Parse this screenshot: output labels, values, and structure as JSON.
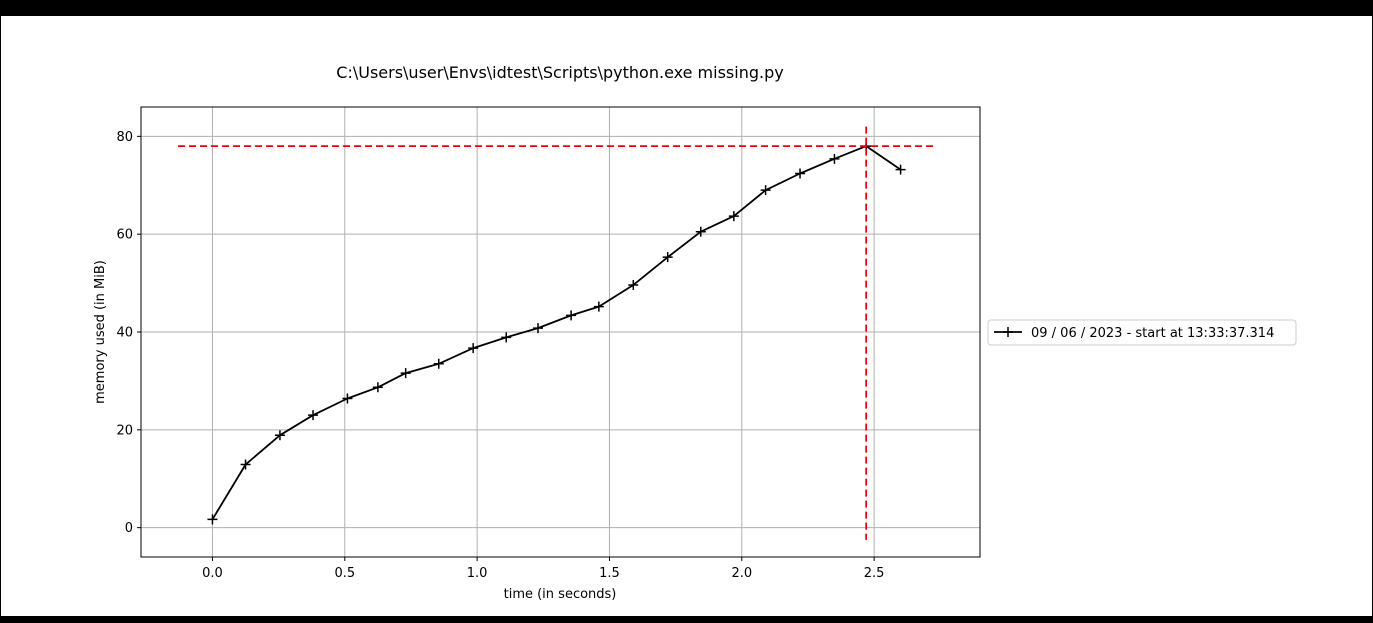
{
  "colors": {
    "line": "#000000",
    "marker": "#000000",
    "peak_lines": "#e8000b",
    "grid": "#b0b0b0",
    "background": "#ffffff",
    "outer_background": "#000000"
  },
  "chart_data": {
    "type": "line",
    "title": "C:\\Users\\user\\Envs\\idtest\\Scripts\\python.exe missing.py",
    "xlabel": "time (in seconds)",
    "ylabel": "memory used (in MiB)",
    "xlim": [
      -0.27,
      2.9
    ],
    "ylim": [
      -6,
      86
    ],
    "xticks": [
      0.0,
      0.5,
      1.0,
      1.5,
      2.0,
      2.5
    ],
    "xtick_labels": [
      "0.0",
      "0.5",
      "1.0",
      "1.5",
      "2.0",
      "2.5"
    ],
    "yticks": [
      0,
      20,
      40,
      60,
      80
    ],
    "ytick_labels": [
      "0",
      "20",
      "40",
      "60",
      "80"
    ],
    "grid": true,
    "legend_placement": "right, outside plot",
    "series": [
      {
        "name": "09 / 06 / 2023 - start at 13:33:37.314",
        "marker": "+",
        "x": [
          0.0,
          0.125,
          0.255,
          0.38,
          0.51,
          0.625,
          0.73,
          0.855,
          0.985,
          1.11,
          1.23,
          1.355,
          1.46,
          1.59,
          1.72,
          1.845,
          1.97,
          2.09,
          2.22,
          2.35,
          2.47,
          2.6
        ],
        "y": [
          1.7,
          12.9,
          18.9,
          23.0,
          26.4,
          28.7,
          31.6,
          33.5,
          36.7,
          38.9,
          40.8,
          43.4,
          45.2,
          49.6,
          55.3,
          60.5,
          63.7,
          69.0,
          72.4,
          75.4,
          78.0,
          73.2
        ]
      }
    ],
    "peak": {
      "x": 2.47,
      "y": 78.0,
      "hline_xrange": [
        -0.13,
        2.73
      ],
      "vline_yrange": [
        -2.5,
        82
      ]
    }
  }
}
